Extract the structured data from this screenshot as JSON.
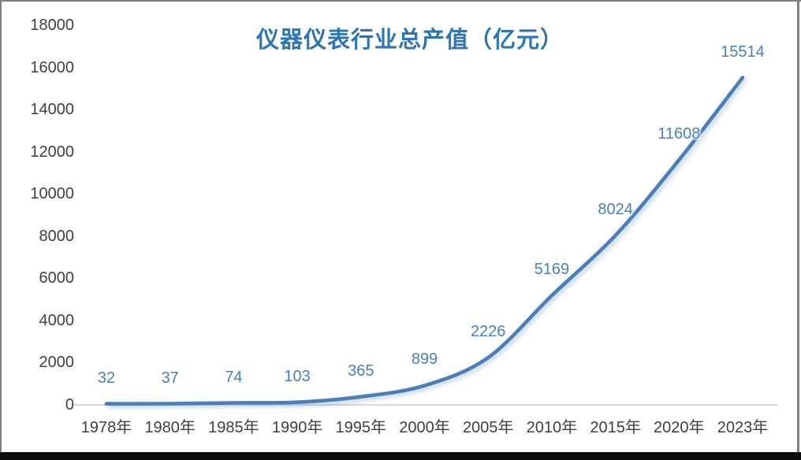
{
  "chart_data": {
    "type": "line",
    "title": "仪器仪表行业总产值（亿元）",
    "categories": [
      "1978年",
      "1980年",
      "1985年",
      "1990年",
      "1995年",
      "2000年",
      "2005年",
      "2010年",
      "2015年",
      "2020年",
      "2023年"
    ],
    "values": [
      32,
      37,
      74,
      103,
      365,
      899,
      2226,
      5169,
      8024,
      11608,
      15514
    ],
    "series_name": "仪器仪表行业总产值",
    "xlabel": "",
    "ylabel": "",
    "ylim": [
      0,
      18000
    ],
    "ytick_step": 2000,
    "yticks": [
      "0",
      "2000",
      "4000",
      "6000",
      "8000",
      "10000",
      "12000",
      "14000",
      "16000",
      "18000"
    ],
    "grid": false,
    "legend_position": "none",
    "smoothed": true,
    "data_labels_shown": true,
    "colors": {
      "line": "#4A7EBB",
      "data_label": "#4A7EBB",
      "axis_text": "#3F3F3F",
      "title": "#2E75B6",
      "baseline": "#D9D9D9",
      "background": "#FFFFFF",
      "frame_border": "#7F7F7F",
      "bottom_shadow": "#0B0B0B"
    }
  }
}
